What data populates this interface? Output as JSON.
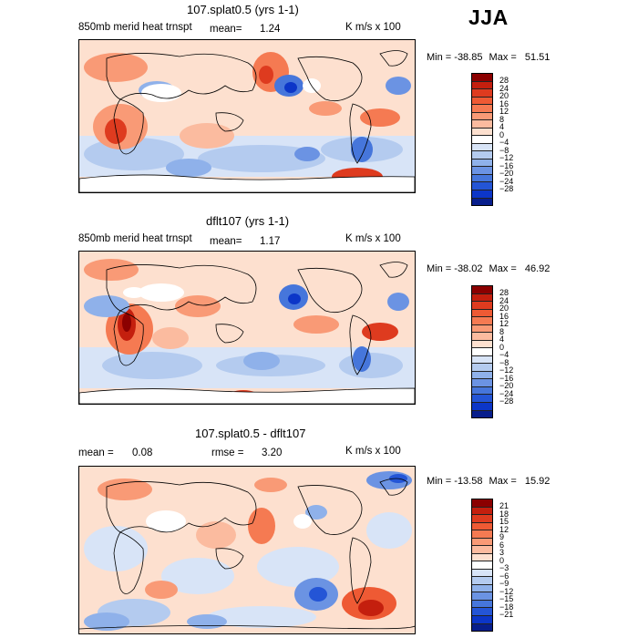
{
  "season": "JJA",
  "panels": [
    {
      "title": "107.splat0.5 (yrs 1-1)",
      "left_label": "850mb merid heat trnspt",
      "stat1": "mean=",
      "stat1_val": "1.24",
      "stat2": "",
      "stat2_val": "",
      "units": "K m/s x 100",
      "min_label": "Min =",
      "min_val": "-38.85",
      "max_label": "Max =",
      "max_val": "51.51",
      "colorbar": {
        "colors": [
          "#8b0000",
          "#c41f0e",
          "#de3b1f",
          "#ee5a34",
          "#f57a52",
          "#f99a76",
          "#fbbb9f",
          "#fde0cf",
          "#ffffff",
          "#d8e4f7",
          "#b4cbef",
          "#8fb1ea",
          "#6b93e3",
          "#4676db",
          "#2455d6",
          "#0c36c8",
          "#081e8c"
        ],
        "ticks": [
          "28",
          "24",
          "20",
          "16",
          "12",
          "8",
          "4",
          "0",
          "−4",
          "−8",
          "−12",
          "−16",
          "−20",
          "−24",
          "−28"
        ]
      }
    },
    {
      "title": "dflt107 (yrs 1-1)",
      "left_label": "850mb merid heat trnspt",
      "stat1": "mean=",
      "stat1_val": "1.17",
      "stat2": "",
      "stat2_val": "",
      "units": "K m/s x 100",
      "min_label": "Min =",
      "min_val": "-38.02",
      "max_label": "Max =",
      "max_val": "46.92",
      "colorbar": {
        "colors": [
          "#8b0000",
          "#c41f0e",
          "#de3b1f",
          "#ee5a34",
          "#f57a52",
          "#f99a76",
          "#fbbb9f",
          "#fde0cf",
          "#ffffff",
          "#d8e4f7",
          "#b4cbef",
          "#8fb1ea",
          "#6b93e3",
          "#4676db",
          "#2455d6",
          "#0c36c8",
          "#081e8c"
        ],
        "ticks": [
          "28",
          "24",
          "20",
          "16",
          "12",
          "8",
          "4",
          "0",
          "−4",
          "−8",
          "−12",
          "−16",
          "−20",
          "−24",
          "−28"
        ]
      }
    },
    {
      "title": "107.splat0.5 - dflt107",
      "left_label": "mean =",
      "stat1": "0.08",
      "stat1_val": "",
      "stat2": "rmse =",
      "stat2_val": "3.20",
      "units": "K m/s x 100",
      "min_label": "Min =",
      "min_val": "-13.58",
      "max_label": "Max =",
      "max_val": "15.92",
      "colorbar": {
        "colors": [
          "#8b0000",
          "#c41f0e",
          "#de3b1f",
          "#ee5a34",
          "#f57a52",
          "#f99a76",
          "#fbbb9f",
          "#fde0cf",
          "#ffffff",
          "#d8e4f7",
          "#b4cbef",
          "#8fb1ea",
          "#6b93e3",
          "#4676db",
          "#2455d6",
          "#0c36c8",
          "#081e8c"
        ],
        "ticks": [
          "21",
          "18",
          "15",
          "12",
          "9",
          "6",
          "3",
          "0",
          "−3",
          "−6",
          "−9",
          "−12",
          "−15",
          "−18",
          "−21"
        ]
      }
    }
  ],
  "map_colors": {
    "red_strong": "#d7301f",
    "red_mid": "#f4845f",
    "red_light": "#fcc5ad",
    "blue_light": "#c6d8f5",
    "blue_mid": "#7aa0e8",
    "blue_strong": "#2a5ad8",
    "land_line": "#000000"
  }
}
